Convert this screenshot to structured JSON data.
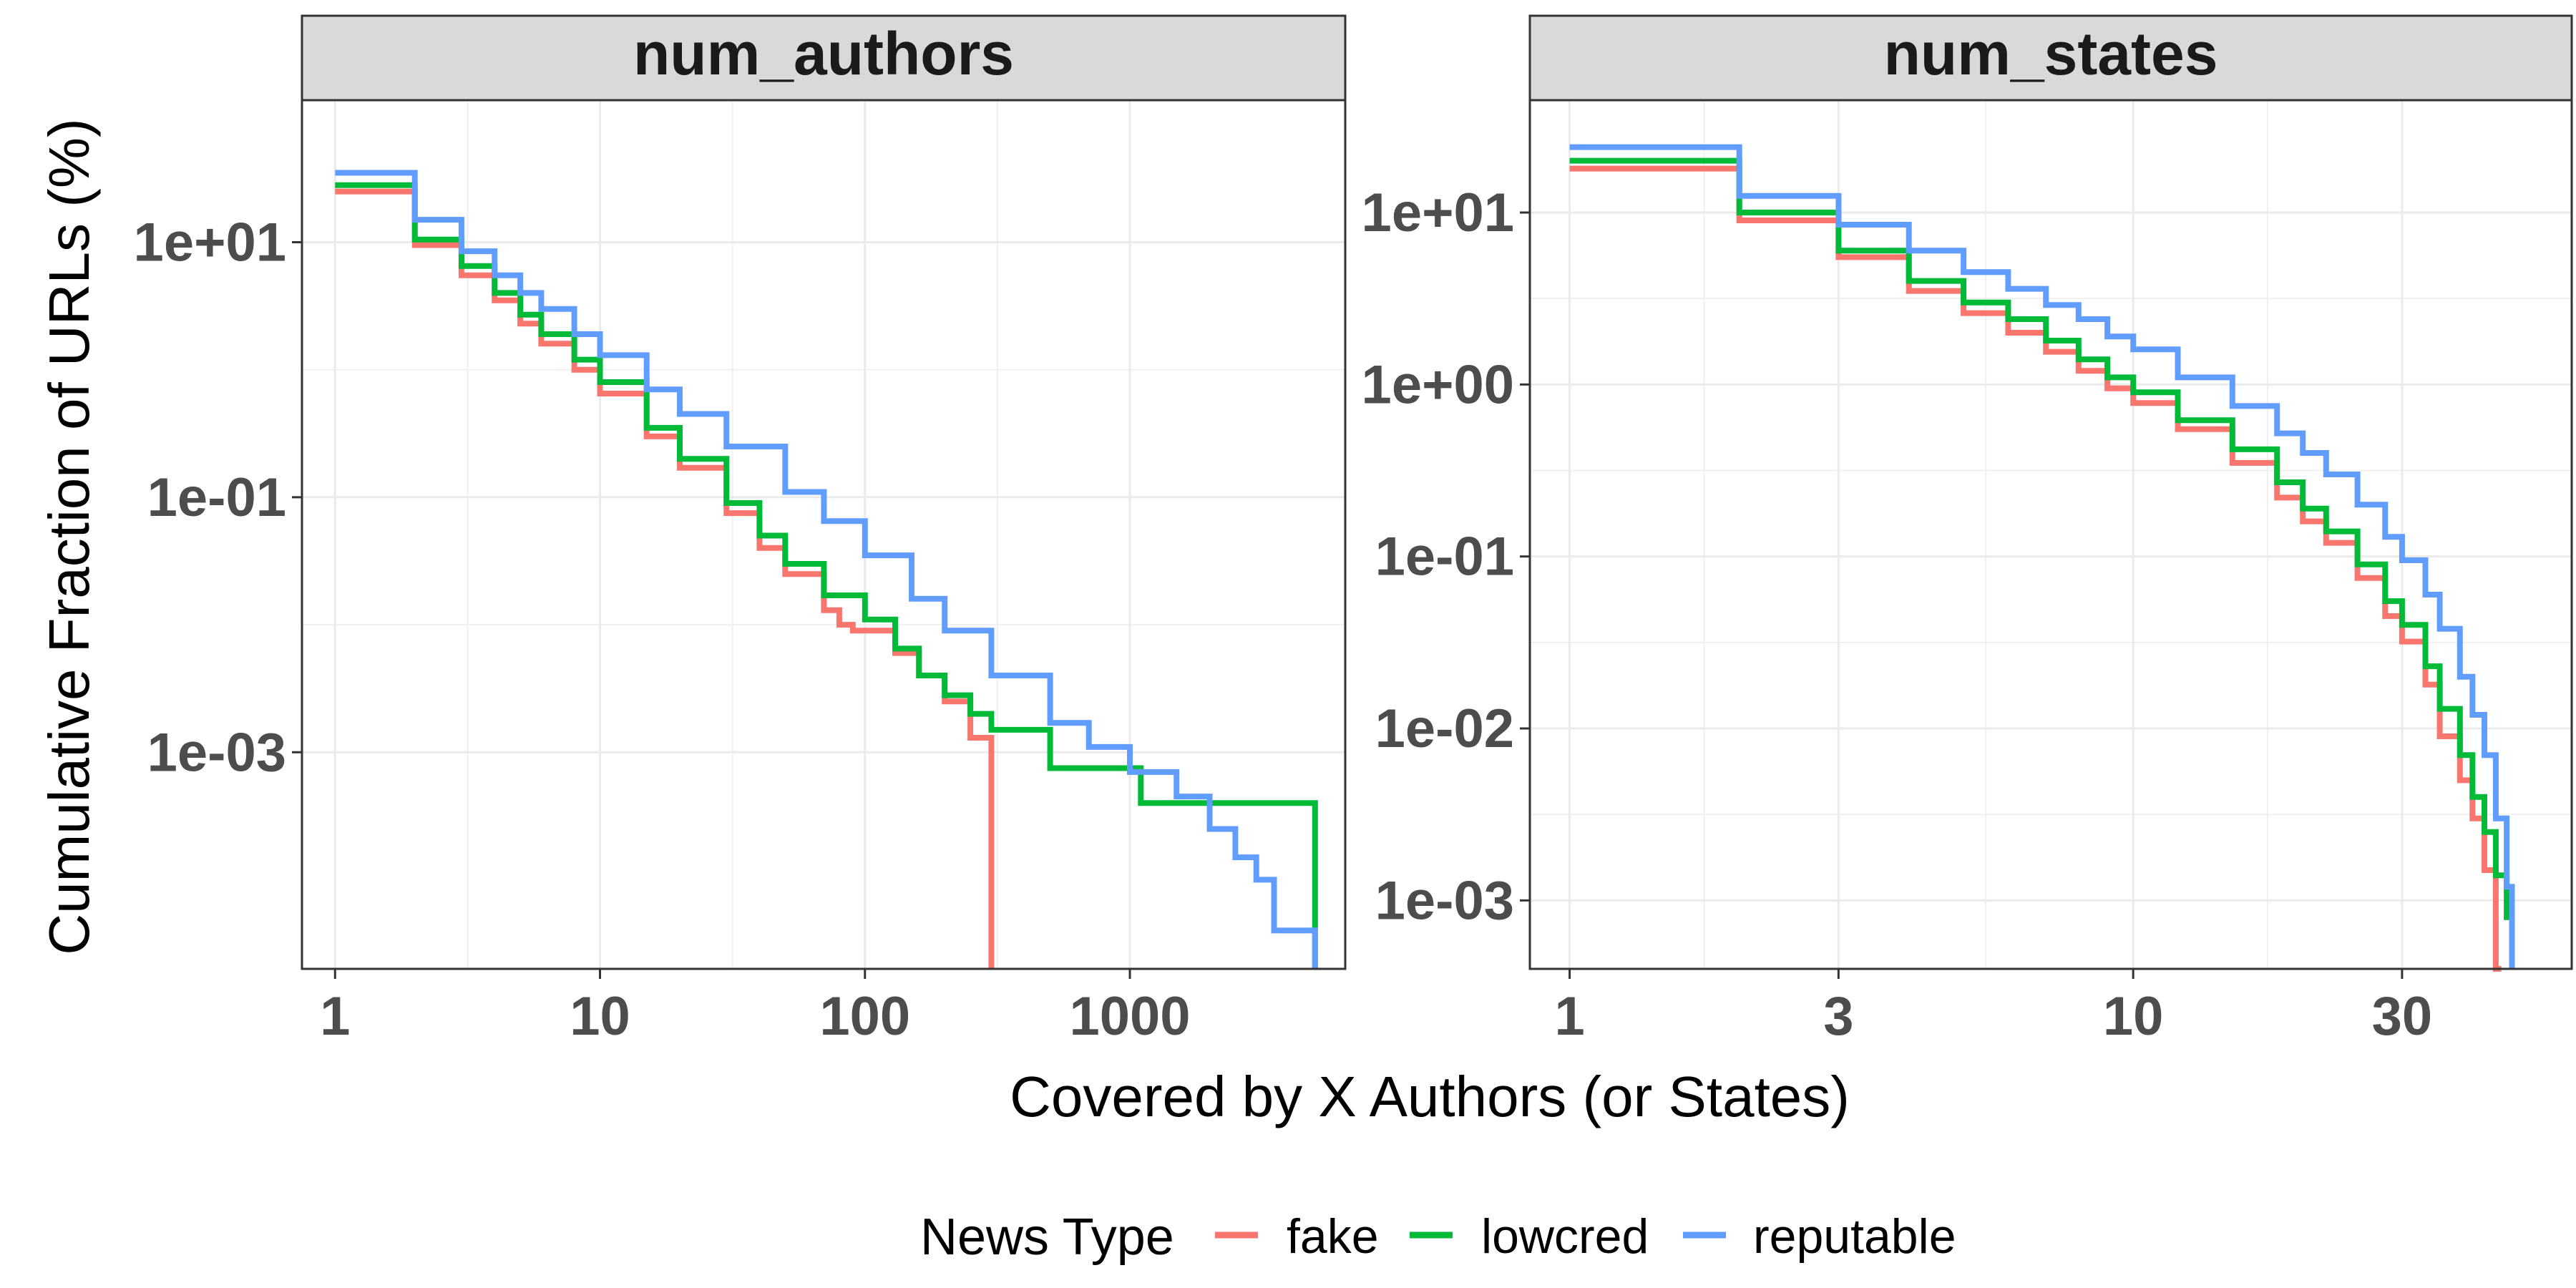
{
  "chart_data": {
    "type": "line",
    "xlabel": "Covered by X Authors (or States)",
    "ylabel": "Cumulative Fraction of URLs (%)",
    "legend": {
      "title": "News Type",
      "position": "bottom",
      "entries": [
        {
          "name": "fake",
          "color": "#F8766D"
        },
        {
          "name": "lowcred",
          "color": "#00BA38"
        },
        {
          "name": "reputable",
          "color": "#619CFF"
        }
      ]
    },
    "grid": true,
    "facets": [
      {
        "title": "num_authors",
        "x_scale": "log",
        "y_scale": "log",
        "xlim": [
          0.75,
          6500
        ],
        "ylim": [
          2e-05,
          130
        ],
        "x_ticks": [
          1,
          10,
          100,
          1000
        ],
        "x_tick_labels": [
          "1",
          "10",
          "100",
          "1000"
        ],
        "y_ticks": [
          10,
          0.1,
          0.001
        ],
        "y_tick_labels": [
          "1e+01",
          "1e-01",
          "1e-03"
        ],
        "series": [
          {
            "name": "fake",
            "x": [
              1,
              2,
              3,
              4,
              5,
              6,
              8,
              10,
              15,
              20,
              30,
              40,
              50,
              70,
              80,
              90,
              100,
              130,
              160,
              200,
              250,
              300
            ],
            "y": [
              25,
              9.5,
              5.5,
              3.5,
              2.3,
              1.6,
              1.0,
              0.65,
              0.3,
              0.17,
              0.075,
              0.04,
              0.025,
              0.013,
              0.01,
              0.009,
              0.009,
              0.006,
              0.004,
              0.0025,
              0.0013,
              2e-05
            ]
          },
          {
            "name": "lowcred",
            "x": [
              1,
              2,
              3,
              4,
              5,
              6,
              8,
              10,
              15,
              20,
              30,
              40,
              50,
              70,
              100,
              130,
              160,
              200,
              250,
              300,
              500,
              1100,
              5000
            ],
            "y": [
              28,
              10.5,
              6.5,
              4.0,
              2.7,
              1.9,
              1.2,
              0.8,
              0.35,
              0.2,
              0.09,
              0.05,
              0.03,
              0.017,
              0.011,
              0.0065,
              0.004,
              0.0028,
              0.002,
              0.0015,
              0.00075,
              0.0004,
              2e-05
            ]
          },
          {
            "name": "reputable",
            "x": [
              1,
              2,
              3,
              4,
              5,
              6,
              8,
              10,
              15,
              20,
              30,
              50,
              70,
              100,
              150,
              200,
              300,
              500,
              700,
              1000,
              1500,
              2000,
              2500,
              3000,
              3500,
              5000
            ],
            "y": [
              35,
              15,
              8.5,
              5.5,
              4.0,
              3.0,
              1.9,
              1.3,
              0.7,
              0.45,
              0.25,
              0.11,
              0.065,
              0.035,
              0.016,
              0.009,
              0.004,
              0.0017,
              0.0011,
              0.0007,
              0.00045,
              0.00025,
              0.00015,
              0.0001,
              4e-05,
              2e-05
            ]
          }
        ]
      },
      {
        "title": "num_states",
        "x_scale": "log",
        "y_scale": "log",
        "xlim": [
          0.85,
          60
        ],
        "ylim": [
          0.0004,
          45
        ],
        "x_ticks": [
          1,
          3,
          10,
          30
        ],
        "x_tick_labels": [
          "1",
          "3",
          "10",
          "30"
        ],
        "y_ticks": [
          10,
          1,
          0.1,
          0.01,
          0.001
        ],
        "y_tick_labels": [
          "1e+01",
          "1e+00",
          "1e-01",
          "1e-02",
          "1e-03"
        ],
        "series": [
          {
            "name": "fake",
            "x": [
              1,
              2,
              3,
              4,
              5,
              6,
              7,
              8,
              9,
              10,
              12,
              15,
              18,
              20,
              22,
              25,
              28,
              30,
              33,
              35,
              38,
              40,
              42,
              43,
              44,
              45
            ],
            "y": [
              18,
              9,
              5.5,
              3.5,
              2.6,
              2.0,
              1.55,
              1.2,
              0.95,
              0.78,
              0.55,
              0.35,
              0.22,
              0.16,
              0.12,
              0.075,
              0.045,
              0.032,
              0.018,
              0.009,
              0.005,
              0.003,
              0.0015,
              0.0015,
              0.0004,
              0.0004
            ]
          },
          {
            "name": "lowcred",
            "x": [
              1,
              2,
              3,
              4,
              5,
              6,
              7,
              8,
              9,
              10,
              12,
              15,
              18,
              20,
              22,
              25,
              28,
              30,
              33,
              35,
              38,
              40,
              42,
              44,
              46,
              47
            ],
            "y": [
              20,
              10,
              6,
              4.0,
              3.0,
              2.4,
              1.8,
              1.4,
              1.1,
              0.9,
              0.62,
              0.42,
              0.27,
              0.19,
              0.14,
              0.09,
              0.055,
              0.04,
              0.023,
              0.013,
              0.007,
              0.004,
              0.0025,
              0.0014,
              0.0008,
              0.0004
            ]
          },
          {
            "name": "reputable",
            "x": [
              1,
              2,
              3,
              4,
              5,
              6,
              7,
              8,
              9,
              10,
              12,
              15,
              18,
              20,
              22,
              25,
              28,
              30,
              33,
              35,
              38,
              40,
              42,
              44,
              46,
              47
            ],
            "y": [
              24,
              12.5,
              8.5,
              6,
              4.5,
              3.6,
              2.9,
              2.4,
              1.9,
              1.6,
              1.1,
              0.75,
              0.52,
              0.4,
              0.3,
              0.2,
              0.13,
              0.095,
              0.06,
              0.038,
              0.02,
              0.012,
              0.007,
              0.003,
              0.0012,
              0.0004
            ]
          }
        ]
      }
    ]
  }
}
